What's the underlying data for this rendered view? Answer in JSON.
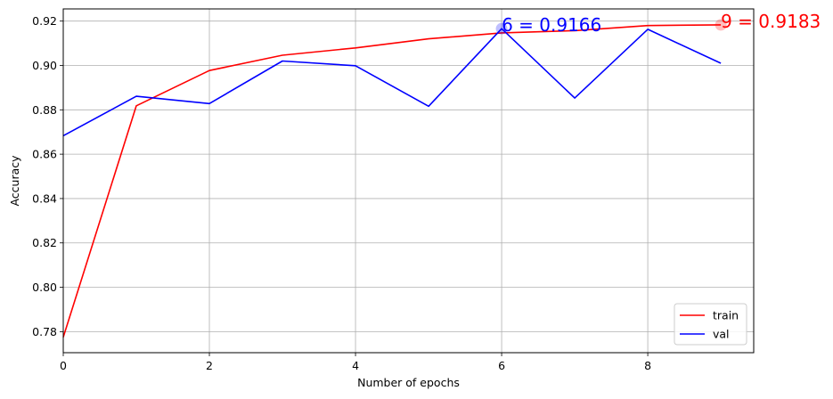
{
  "chart_data": {
    "type": "line",
    "xlabel": "Number of epochs",
    "ylabel": "Accuracy",
    "xlim": [
      0,
      9.45
    ],
    "ylim": [
      0.7705,
      0.9255
    ],
    "xticks": [
      0,
      2,
      4,
      6,
      8
    ],
    "yticks": [
      0.78,
      0.8,
      0.82,
      0.84,
      0.86,
      0.88,
      0.9,
      0.92
    ],
    "xtick_labels": [
      "0",
      "2",
      "4",
      "6",
      "8"
    ],
    "ytick_labels": [
      "0.78",
      "0.80",
      "0.82",
      "0.84",
      "0.86",
      "0.88",
      "0.90",
      "0.92"
    ],
    "grid": true,
    "legend_position": "lower-right",
    "x": [
      0,
      1,
      2,
      3,
      4,
      5,
      6,
      7,
      8,
      9
    ],
    "series": [
      {
        "name": "train",
        "color": "#ff0000",
        "values": [
          0.7775,
          0.8818,
          0.8977,
          0.9046,
          0.9079,
          0.912,
          0.9147,
          0.9157,
          0.918,
          0.9183
        ]
      },
      {
        "name": "val",
        "color": "#0000ff",
        "values": [
          0.8683,
          0.8861,
          0.8828,
          0.902,
          0.8999,
          0.8816,
          0.9166,
          0.8853,
          0.9163,
          0.901
        ]
      }
    ],
    "annotations": [
      {
        "x": 9,
        "y": 0.9183,
        "text": "9 = 0.9183",
        "color": "#ff0000"
      },
      {
        "x": 6,
        "y": 0.9166,
        "text": "6 = 0.9166",
        "color": "#0000ff"
      }
    ]
  }
}
